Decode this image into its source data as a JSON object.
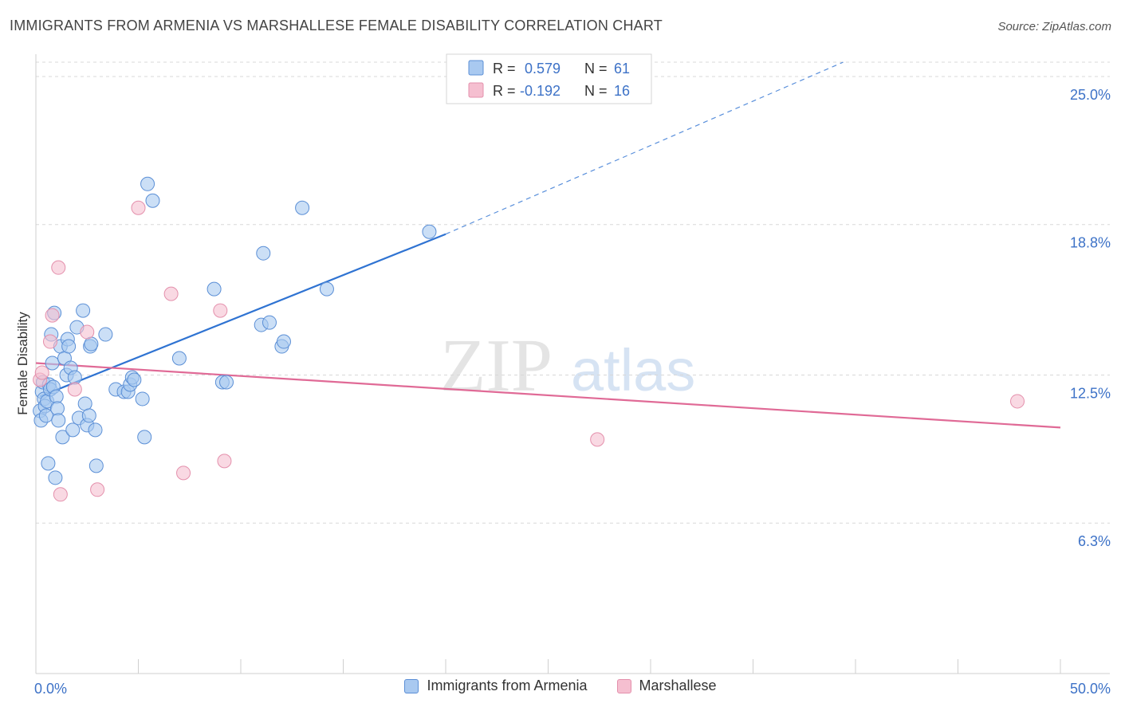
{
  "header": {
    "title": "IMMIGRANTS FROM ARMENIA VS MARSHALLESE FEMALE DISABILITY CORRELATION CHART",
    "source": "Source: ZipAtlas.com"
  },
  "watermark": {
    "zip": "ZIP",
    "atlas": "atlas"
  },
  "colors": {
    "blue_fill": "#a9c9f0",
    "blue_stroke": "#5b8fd6",
    "blue_line": "#2f73d2",
    "pink_fill": "#f5bfd0",
    "pink_stroke": "#e490ac",
    "pink_line": "#e06a96",
    "axis_text": "#3d72c7",
    "grid": "#d8d8d8"
  },
  "legend": {
    "rows": [
      {
        "r_label": "R =",
        "r_value": "0.579",
        "n_label": "N =",
        "n_value": "61"
      },
      {
        "r_label": "R =",
        "r_value": "-0.192",
        "n_label": "N =",
        "n_value": "16"
      }
    ]
  },
  "chart_data": {
    "type": "scatter",
    "title": "IMMIGRANTS FROM ARMENIA VS MARSHALLESE FEMALE DISABILITY CORRELATION CHART",
    "xlabel": "",
    "ylabel": "Female Disability",
    "xlim": [
      0,
      50
    ],
    "ylim": [
      0,
      25.6
    ],
    "x_tick_labels": [
      "0.0%",
      "50.0%"
    ],
    "y_ticks": [
      6.3,
      12.5,
      18.8,
      25.0
    ],
    "y_tick_labels": [
      "6.3%",
      "12.5%",
      "18.8%",
      "25.0%"
    ],
    "grid": true,
    "series": [
      {
        "name": "Immigrants from Armenia",
        "color": "#a9c9f0",
        "points": [
          [
            0.2,
            11.0
          ],
          [
            0.25,
            10.6
          ],
          [
            0.3,
            11.8
          ],
          [
            0.35,
            12.2
          ],
          [
            0.4,
            11.5
          ],
          [
            0.45,
            11.2
          ],
          [
            0.5,
            10.8
          ],
          [
            0.55,
            11.4
          ],
          [
            0.6,
            8.8
          ],
          [
            0.65,
            12.1
          ],
          [
            0.7,
            11.9
          ],
          [
            0.75,
            14.2
          ],
          [
            0.8,
            13.0
          ],
          [
            0.85,
            12.0
          ],
          [
            0.9,
            15.1
          ],
          [
            0.95,
            8.2
          ],
          [
            1.0,
            11.6
          ],
          [
            1.05,
            11.1
          ],
          [
            1.1,
            10.6
          ],
          [
            1.2,
            13.7
          ],
          [
            1.3,
            9.9
          ],
          [
            1.4,
            13.2
          ],
          [
            1.5,
            12.5
          ],
          [
            1.55,
            14.0
          ],
          [
            1.6,
            13.7
          ],
          [
            1.7,
            12.8
          ],
          [
            1.8,
            10.2
          ],
          [
            1.9,
            12.4
          ],
          [
            2.0,
            14.5
          ],
          [
            2.1,
            10.7
          ],
          [
            2.3,
            15.2
          ],
          [
            2.4,
            11.3
          ],
          [
            2.5,
            10.4
          ],
          [
            2.6,
            10.8
          ],
          [
            2.65,
            13.7
          ],
          [
            2.7,
            13.8
          ],
          [
            2.9,
            10.2
          ],
          [
            2.95,
            8.7
          ],
          [
            3.4,
            14.2
          ],
          [
            3.9,
            11.9
          ],
          [
            4.3,
            11.8
          ],
          [
            4.5,
            11.8
          ],
          [
            4.6,
            12.1
          ],
          [
            4.7,
            12.4
          ],
          [
            4.8,
            12.3
          ],
          [
            5.2,
            11.5
          ],
          [
            5.3,
            9.9
          ],
          [
            5.45,
            20.5
          ],
          [
            5.7,
            19.8
          ],
          [
            7.0,
            13.2
          ],
          [
            8.7,
            16.1
          ],
          [
            9.1,
            12.2
          ],
          [
            9.3,
            12.2
          ],
          [
            11.0,
            14.6
          ],
          [
            11.1,
            17.6
          ],
          [
            11.4,
            14.7
          ],
          [
            12.0,
            13.7
          ],
          [
            12.1,
            13.9
          ],
          [
            13.0,
            19.5
          ],
          [
            14.2,
            16.1
          ],
          [
            19.2,
            18.5
          ]
        ],
        "trend": {
          "x": [
            0.2,
            20.0
          ],
          "y": [
            11.6,
            18.4
          ],
          "dashed_extension_to": [
            39.4,
            25.6
          ]
        }
      },
      {
        "name": "Marshallese",
        "color": "#f5bfd0",
        "points": [
          [
            0.2,
            12.3
          ],
          [
            0.3,
            12.6
          ],
          [
            0.7,
            13.9
          ],
          [
            0.8,
            15.0
          ],
          [
            1.1,
            17.0
          ],
          [
            1.2,
            7.5
          ],
          [
            1.9,
            11.9
          ],
          [
            2.5,
            14.3
          ],
          [
            3.0,
            7.7
          ],
          [
            5.0,
            19.5
          ],
          [
            6.6,
            15.9
          ],
          [
            7.2,
            8.4
          ],
          [
            9.0,
            15.2
          ],
          [
            9.2,
            8.9
          ],
          [
            27.4,
            9.8
          ],
          [
            47.9,
            11.4
          ]
        ],
        "trend": {
          "x": [
            0.0,
            50.0
          ],
          "y": [
            13.0,
            10.3
          ]
        }
      }
    ]
  }
}
